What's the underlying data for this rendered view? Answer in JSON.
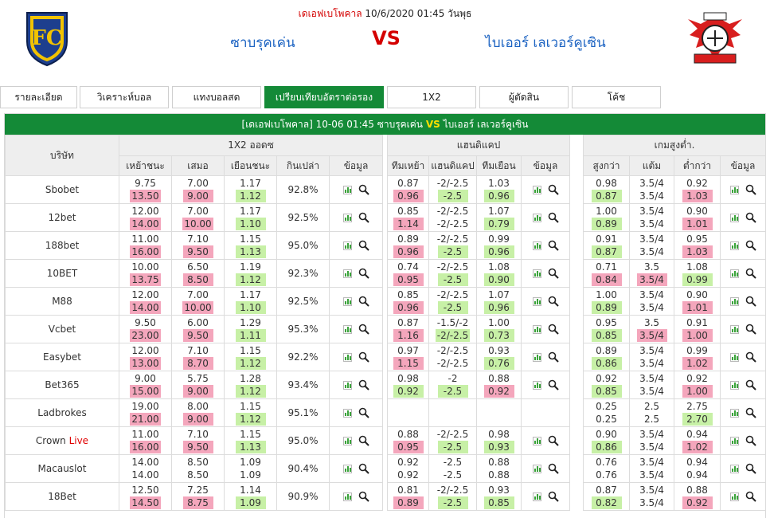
{
  "header": {
    "league": "เดเอฟเบโพคาล",
    "datetime": "10/6/2020 01:45 วันพุธ",
    "home_team": "ซาบรุคเค่น",
    "vs": "VS",
    "away_team": "ไบเออร์ เลเวอร์คูเซิน"
  },
  "tabs": [
    "รายละเอียด",
    "วิเคราะห์บอล",
    "แทงบอลสด",
    "เปรียบเทียบอัตราต่อรอง",
    "1X2",
    "ผู้ตัดสิน",
    "โค้ช"
  ],
  "title_bar": {
    "league": "[เดเอฟเบโพคาล]",
    "datetime": "10-06 01:45",
    "home": "ซาบรุคเค่น",
    "vs": "VS",
    "away": "ไบเออร์ เลเวอร์คูเซิน"
  },
  "headers": {
    "company": "บริษัท",
    "group_1x2": "1X2 ออดซ",
    "group_hdp": "แฮนดิแคป",
    "group_ou": "เกมสูงต่ำ.",
    "c1x2": [
      "เหย้าชนะ",
      "เสมอ",
      "เยือนชนะ",
      "กินเปล่า",
      "ข้อมูล"
    ],
    "chdp": [
      "ทีมเหย้า",
      "แฮนดิแคป",
      "ทีมเยือน",
      "ข้อมูล"
    ],
    "cou": [
      "สูงกว่า",
      "แต้ม",
      "ต่ำกว่า",
      "ข้อมูล"
    ]
  },
  "rows": [
    {
      "company": "Sbobet",
      "live": "",
      "x12": {
        "h": [
          "9.75",
          "13.50"
        ],
        "d": [
          "7.00",
          "9.00"
        ],
        "a": [
          "1.17",
          "1.12"
        ],
        "hl": [
          "red",
          "red",
          "grn"
        ]
      },
      "ret": "92.8%",
      "hdp": {
        "h": [
          "0.87",
          "0.96"
        ],
        "l": [
          "-2/-2.5",
          "-2.5"
        ],
        "a": [
          "1.03",
          "0.96"
        ],
        "hl": [
          "red",
          "grn",
          "grn"
        ]
      },
      "ou": {
        "o": [
          "0.98",
          "0.87"
        ],
        "l": [
          "3.5/4",
          "3.5/4"
        ],
        "u": [
          "0.92",
          "1.03"
        ],
        "hl": [
          "grn",
          "",
          "red"
        ]
      }
    },
    {
      "company": "12bet",
      "live": "",
      "x12": {
        "h": [
          "12.00",
          "14.00"
        ],
        "d": [
          "7.00",
          "10.00"
        ],
        "a": [
          "1.17",
          "1.10"
        ],
        "hl": [
          "red",
          "red",
          "grn"
        ]
      },
      "ret": "92.5%",
      "hdp": {
        "h": [
          "0.85",
          "1.14"
        ],
        "l": [
          "-2/-2.5",
          "-2/-2.5"
        ],
        "a": [
          "1.07",
          "0.79"
        ],
        "hl": [
          "red",
          "",
          "grn"
        ]
      },
      "ou": {
        "o": [
          "1.00",
          "0.89"
        ],
        "l": [
          "3.5/4",
          "3.5/4"
        ],
        "u": [
          "0.90",
          "1.01"
        ],
        "hl": [
          "grn",
          "",
          "red"
        ]
      }
    },
    {
      "company": "188bet",
      "live": "",
      "x12": {
        "h": [
          "11.00",
          "16.00"
        ],
        "d": [
          "7.10",
          "9.50"
        ],
        "a": [
          "1.15",
          "1.13"
        ],
        "hl": [
          "red",
          "red",
          "grn"
        ]
      },
      "ret": "95.0%",
      "hdp": {
        "h": [
          "0.89",
          "0.96"
        ],
        "l": [
          "-2/-2.5",
          "-2.5"
        ],
        "a": [
          "0.99",
          "0.96"
        ],
        "hl": [
          "red",
          "grn",
          "grn"
        ]
      },
      "ou": {
        "o": [
          "0.91",
          "0.87"
        ],
        "l": [
          "3.5/4",
          "3.5/4"
        ],
        "u": [
          "0.95",
          "1.03"
        ],
        "hl": [
          "grn",
          "",
          "red"
        ]
      }
    },
    {
      "company": "10BET",
      "live": "",
      "x12": {
        "h": [
          "10.00",
          "13.75"
        ],
        "d": [
          "6.50",
          "8.50"
        ],
        "a": [
          "1.19",
          "1.12"
        ],
        "hl": [
          "red",
          "red",
          "grn"
        ]
      },
      "ret": "92.3%",
      "hdp": {
        "h": [
          "0.74",
          "0.95"
        ],
        "l": [
          "-2/-2.5",
          "-2.5"
        ],
        "a": [
          "1.08",
          "0.90"
        ],
        "hl": [
          "red",
          "grn",
          "grn"
        ]
      },
      "ou": {
        "o": [
          "0.71",
          "0.84"
        ],
        "l": [
          "3.5",
          "3.5/4"
        ],
        "u": [
          "1.08",
          "0.99"
        ],
        "hl": [
          "red",
          "red",
          "grn"
        ]
      }
    },
    {
      "company": "M88",
      "live": "",
      "x12": {
        "h": [
          "12.00",
          "14.00"
        ],
        "d": [
          "7.00",
          "10.00"
        ],
        "a": [
          "1.17",
          "1.10"
        ],
        "hl": [
          "red",
          "red",
          "grn"
        ]
      },
      "ret": "92.5%",
      "hdp": {
        "h": [
          "0.85",
          "0.96"
        ],
        "l": [
          "-2/-2.5",
          "-2.5"
        ],
        "a": [
          "1.07",
          "0.96"
        ],
        "hl": [
          "red",
          "grn",
          "grn"
        ]
      },
      "ou": {
        "o": [
          "1.00",
          "0.89"
        ],
        "l": [
          "3.5/4",
          "3.5/4"
        ],
        "u": [
          "0.90",
          "1.01"
        ],
        "hl": [
          "grn",
          "",
          "red"
        ]
      }
    },
    {
      "company": "Vcbet",
      "live": "",
      "x12": {
        "h": [
          "9.50",
          "23.00"
        ],
        "d": [
          "6.00",
          "9.50"
        ],
        "a": [
          "1.29",
          "1.11"
        ],
        "hl": [
          "red",
          "red",
          "grn"
        ]
      },
      "ret": "95.3%",
      "hdp": {
        "h": [
          "0.87",
          "1.16"
        ],
        "l": [
          "-1.5/-2",
          "-2/-2.5"
        ],
        "a": [
          "1.00",
          "0.73"
        ],
        "hl": [
          "red",
          "grn",
          "grn"
        ]
      },
      "ou": {
        "o": [
          "0.95",
          "0.85"
        ],
        "l": [
          "3.5",
          "3.5/4"
        ],
        "u": [
          "0.91",
          "1.00"
        ],
        "hl": [
          "grn",
          "red",
          "red"
        ]
      }
    },
    {
      "company": "Easybet",
      "live": "",
      "x12": {
        "h": [
          "12.00",
          "13.00"
        ],
        "d": [
          "7.10",
          "8.70"
        ],
        "a": [
          "1.15",
          "1.12"
        ],
        "hl": [
          "red",
          "red",
          "grn"
        ]
      },
      "ret": "92.2%",
      "hdp": {
        "h": [
          "0.97",
          "1.15"
        ],
        "l": [
          "-2/-2.5",
          "-2/-2.5"
        ],
        "a": [
          "0.93",
          "0.76"
        ],
        "hl": [
          "red",
          "",
          "grn"
        ]
      },
      "ou": {
        "o": [
          "0.89",
          "0.86"
        ],
        "l": [
          "3.5/4",
          "3.5/4"
        ],
        "u": [
          "0.99",
          "1.02"
        ],
        "hl": [
          "grn",
          "",
          "red"
        ]
      }
    },
    {
      "company": "Bet365",
      "live": "",
      "x12": {
        "h": [
          "9.00",
          "15.00"
        ],
        "d": [
          "5.75",
          "9.00"
        ],
        "a": [
          "1.28",
          "1.12"
        ],
        "hl": [
          "red",
          "red",
          "grn"
        ]
      },
      "ret": "93.4%",
      "hdp": {
        "h": [
          "0.98",
          "0.92"
        ],
        "l": [
          "-2",
          "-2.5"
        ],
        "a": [
          "0.88",
          "0.92"
        ],
        "hl": [
          "grn",
          "grn",
          "red"
        ]
      },
      "ou": {
        "o": [
          "0.92",
          "0.85"
        ],
        "l": [
          "3.5/4",
          "3.5/4"
        ],
        "u": [
          "0.92",
          "1.00"
        ],
        "hl": [
          "grn",
          "",
          "red"
        ]
      }
    },
    {
      "company": "Ladbrokes",
      "live": "",
      "x12": {
        "h": [
          "19.00",
          "21.00"
        ],
        "d": [
          "8.00",
          "9.00"
        ],
        "a": [
          "1.15",
          "1.12"
        ],
        "hl": [
          "red",
          "red",
          "grn"
        ]
      },
      "ret": "95.1%",
      "hdp": null,
      "ou": {
        "o": [
          "0.25",
          "0.25"
        ],
        "l": [
          "2.5",
          "2.5"
        ],
        "u": [
          "2.75",
          "2.70"
        ],
        "hl": [
          "",
          "",
          "grn"
        ]
      }
    },
    {
      "company": "Crown",
      "live": "Live",
      "x12": {
        "h": [
          "11.00",
          "16.00"
        ],
        "d": [
          "7.10",
          "9.50"
        ],
        "a": [
          "1.15",
          "1.13"
        ],
        "hl": [
          "red",
          "red",
          "grn"
        ]
      },
      "ret": "95.0%",
      "hdp": {
        "h": [
          "0.88",
          "0.95"
        ],
        "l": [
          "-2/-2.5",
          "-2.5"
        ],
        "a": [
          "0.98",
          "0.93"
        ],
        "hl": [
          "red",
          "grn",
          "grn"
        ]
      },
      "ou": {
        "o": [
          "0.90",
          "0.86"
        ],
        "l": [
          "3.5/4",
          "3.5/4"
        ],
        "u": [
          "0.94",
          "1.02"
        ],
        "hl": [
          "grn",
          "",
          "red"
        ]
      }
    },
    {
      "company": "Macauslot",
      "live": "",
      "x12": {
        "h": [
          "14.00",
          "14.00"
        ],
        "d": [
          "8.50",
          "8.50"
        ],
        "a": [
          "1.09",
          "1.09"
        ],
        "hl": [
          "",
          "",
          ""
        ]
      },
      "ret": "90.4%",
      "hdp": {
        "h": [
          "0.92",
          "0.92"
        ],
        "l": [
          "-2.5",
          "-2.5"
        ],
        "a": [
          "0.88",
          "0.88"
        ],
        "hl": [
          "",
          "",
          ""
        ]
      },
      "ou": {
        "o": [
          "0.76",
          "0.76"
        ],
        "l": [
          "3.5/4",
          "3.5/4"
        ],
        "u": [
          "0.94",
          "0.94"
        ],
        "hl": [
          "",
          "",
          ""
        ]
      }
    },
    {
      "company": "18Bet",
      "live": "",
      "x12": {
        "h": [
          "12.50",
          "14.50"
        ],
        "d": [
          "7.25",
          "8.75"
        ],
        "a": [
          "1.14",
          "1.09"
        ],
        "hl": [
          "red",
          "red",
          "grn"
        ]
      },
      "ret": "90.9%",
      "hdp": {
        "h": [
          "0.81",
          "0.89"
        ],
        "l": [
          "-2/-2.5",
          "-2.5"
        ],
        "a": [
          "0.93",
          "0.85"
        ],
        "hl": [
          "red",
          "grn",
          "grn"
        ]
      },
      "ou": {
        "o": [
          "0.87",
          "0.82"
        ],
        "l": [
          "3.5/4",
          "3.5/4"
        ],
        "u": [
          "0.88",
          "0.92"
        ],
        "hl": [
          "grn",
          "",
          "red"
        ]
      }
    }
  ],
  "colors": {
    "accent": "#148a37",
    "up": "#f4a6bc",
    "down": "#c7f0a6",
    "vs": "#d40000",
    "team": "#1c63c2"
  },
  "icons": {
    "chart": "bar-chart-icon",
    "detail": "magnifier-icon"
  }
}
